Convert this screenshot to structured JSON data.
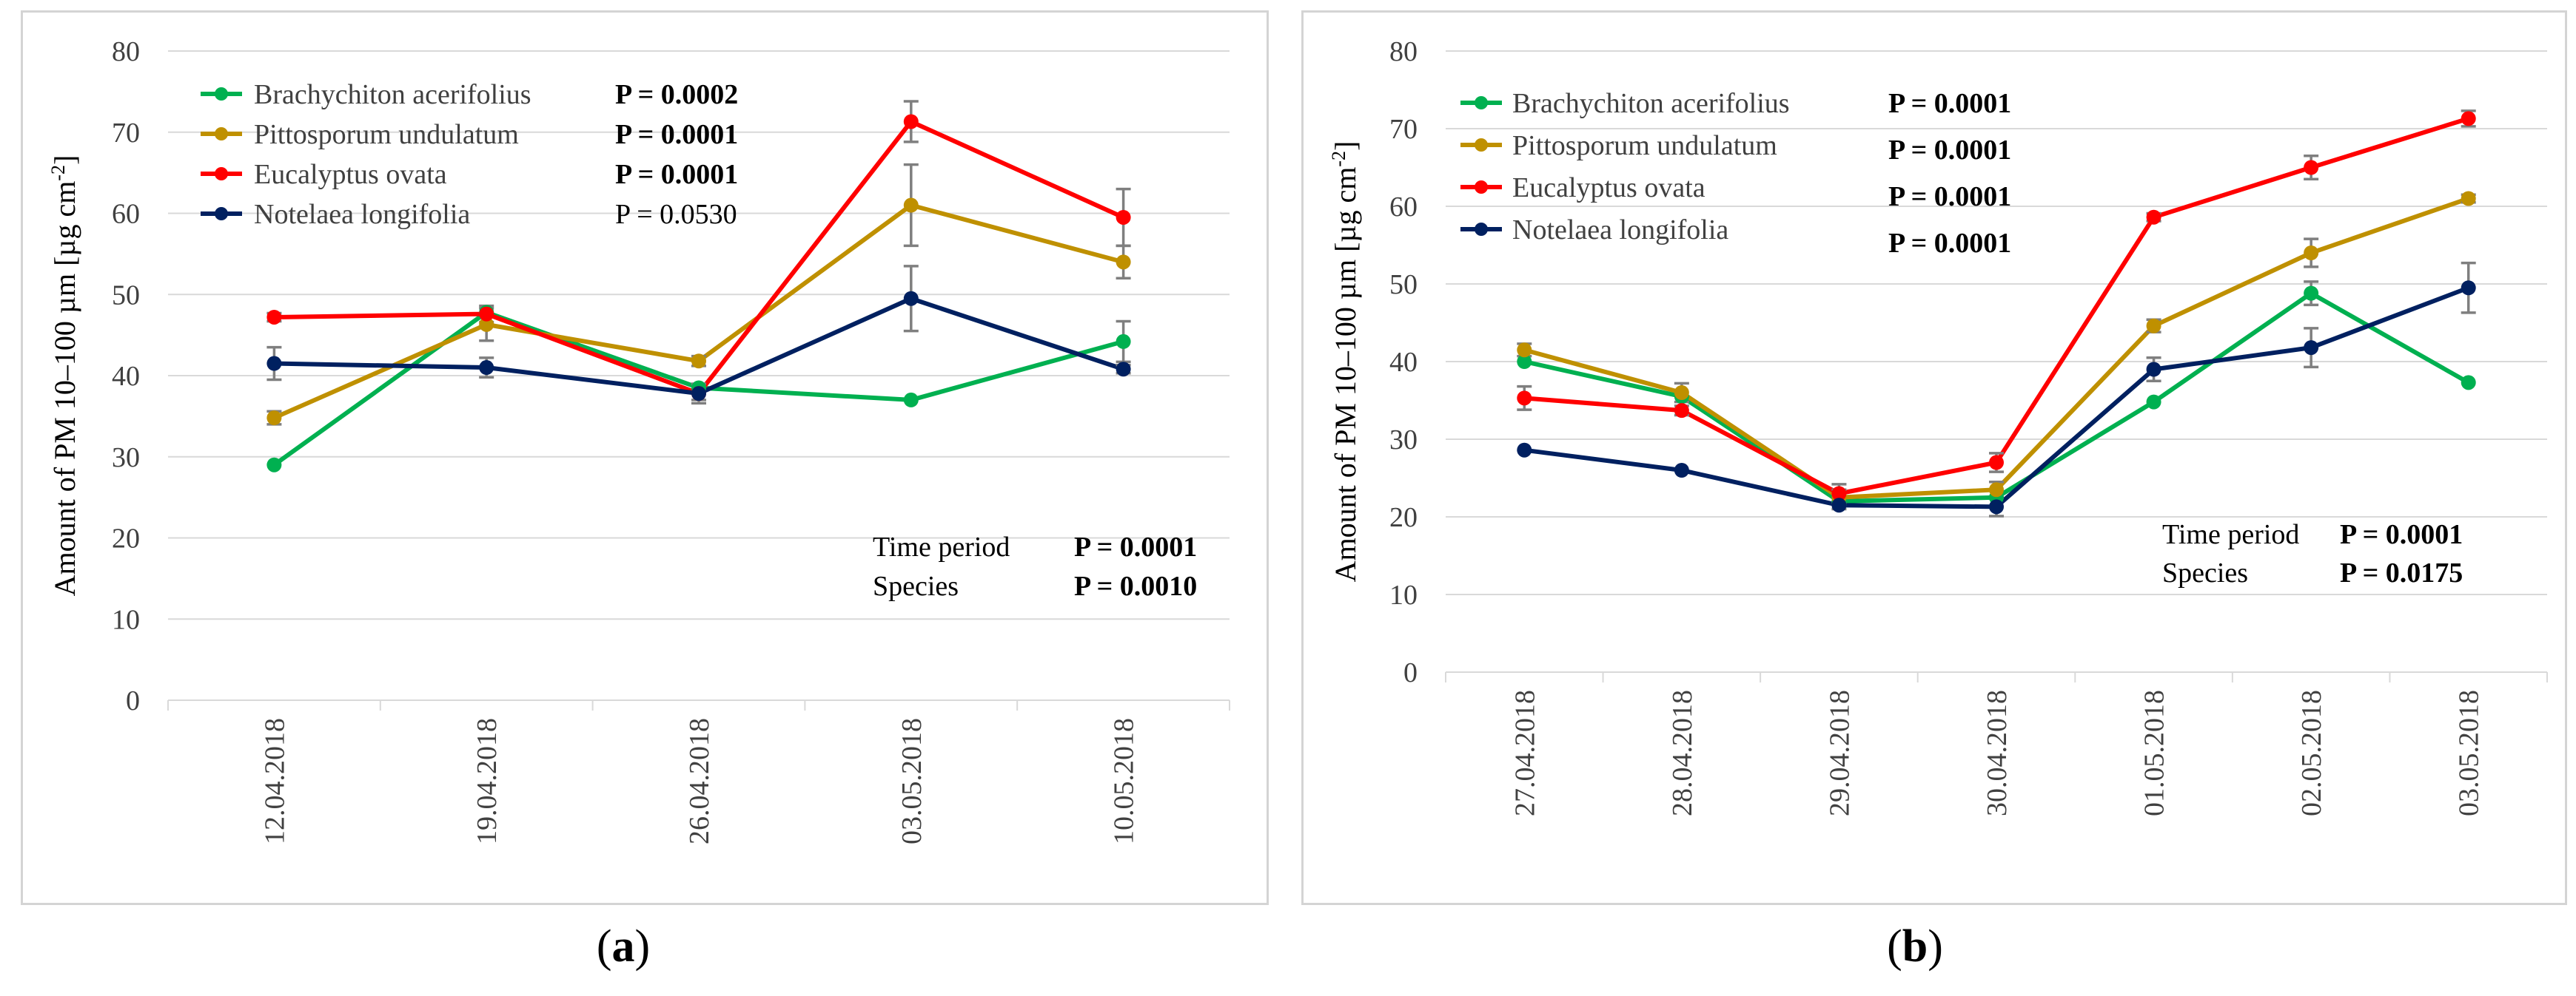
{
  "chart_data": [
    {
      "id": "a",
      "type": "line",
      "caption": {
        "open": "(",
        "letter": "a",
        "close": ")"
      },
      "ylabel_main": "Amount of PM 10–100 µm [µg cm",
      "ylabel_sup": "-2",
      "ylabel_end": "]",
      "ylim": [
        0,
        80
      ],
      "yticks": [
        0,
        10,
        20,
        30,
        40,
        50,
        60,
        70,
        80
      ],
      "categories": [
        "12.04.2018",
        "19.04.2018",
        "26.04.2018",
        "03.05.2018",
        "10.05.2018"
      ],
      "series": [
        {
          "name": "Brachychiton acerifolius",
          "color": "#00b050",
          "p": "P = 0.0002",
          "p_bold": true,
          "values": [
            29.0,
            47.8,
            38.5,
            37.0,
            44.2
          ],
          "errors": [
            0,
            0,
            0,
            0,
            2.5
          ]
        },
        {
          "name": "Pittosporum undulatum",
          "color": "#bf9000",
          "p": "P = 0.0001",
          "p_bold": true,
          "values": [
            34.8,
            46.3,
            41.8,
            61.0,
            54.0
          ],
          "errors": [
            0.8,
            2.0,
            0.6,
            5.0,
            2.0
          ]
        },
        {
          "name": "Eucalyptus ovata",
          "color": "#ff0000",
          "p": "P = 0.0001",
          "p_bold": true,
          "values": [
            47.2,
            47.6,
            37.8,
            71.3,
            59.5
          ],
          "errors": [
            0.5,
            1.0,
            0.8,
            2.5,
            3.5
          ]
        },
        {
          "name": "Notelaea longifolia",
          "color": "#002060",
          "p": "P = 0.0530",
          "p_bold": false,
          "values": [
            41.5,
            41.0,
            37.8,
            49.5,
            40.8
          ],
          "errors": [
            2.0,
            1.2,
            1.2,
            4.0,
            0.5
          ]
        }
      ],
      "stats": [
        {
          "label": "Time period",
          "value": "P = 0.0001"
        },
        {
          "label": "Species",
          "value": "P = 0.0010"
        }
      ]
    },
    {
      "id": "b",
      "type": "line",
      "caption": {
        "open": "(",
        "letter": "b",
        "close": ")"
      },
      "ylabel_main": "Amount of PM 10–100 µm [µg cm",
      "ylabel_sup": "-2",
      "ylabel_end": "]",
      "ylim": [
        0,
        80
      ],
      "yticks": [
        0,
        10,
        20,
        30,
        40,
        50,
        60,
        70,
        80
      ],
      "categories": [
        "27.04.2018",
        "28.04.2018",
        "29.04.2018",
        "30.04.2018",
        "01.05.2018",
        "02.05.2018",
        "03.05.2018"
      ],
      "series": [
        {
          "name": "Brachychiton acerifolius",
          "color": "#00b050",
          "p": "P = 0.0001",
          "p_bold": true,
          "values": [
            40.0,
            35.5,
            22.0,
            22.5,
            34.8,
            48.8,
            37.3
          ],
          "errors": [
            0,
            0,
            0,
            0,
            0,
            1.5,
            0
          ]
        },
        {
          "name": "Pittosporum undulatum",
          "color": "#bf9000",
          "p": "P = 0.0001",
          "p_bold": true,
          "values": [
            41.5,
            36.0,
            22.5,
            23.5,
            44.6,
            54.0,
            61.0
          ],
          "errors": [
            0.8,
            1.2,
            1.0,
            1.0,
            0.8,
            1.8,
            0.5
          ]
        },
        {
          "name": "Eucalyptus ovata",
          "color": "#ff0000",
          "p": "P = 0.0001",
          "p_bold": true,
          "values": [
            35.3,
            33.7,
            23.0,
            27.0,
            58.6,
            65.0,
            71.3
          ],
          "errors": [
            1.5,
            0.6,
            1.2,
            1.2,
            0.5,
            1.5,
            1.0
          ]
        },
        {
          "name": "Notelaea longifolia",
          "color": "#002060",
          "p": "P = 0.0001",
          "p_bold": true,
          "values": [
            28.6,
            26.0,
            21.5,
            21.3,
            39.0,
            41.8,
            49.5
          ],
          "errors": [
            0,
            0,
            0.5,
            1.2,
            1.5,
            2.5,
            3.2
          ]
        }
      ],
      "stats": [
        {
          "label": "Time period",
          "value": "P = 0.0001"
        },
        {
          "label": "Species",
          "value": "P = 0.0175"
        }
      ]
    }
  ]
}
